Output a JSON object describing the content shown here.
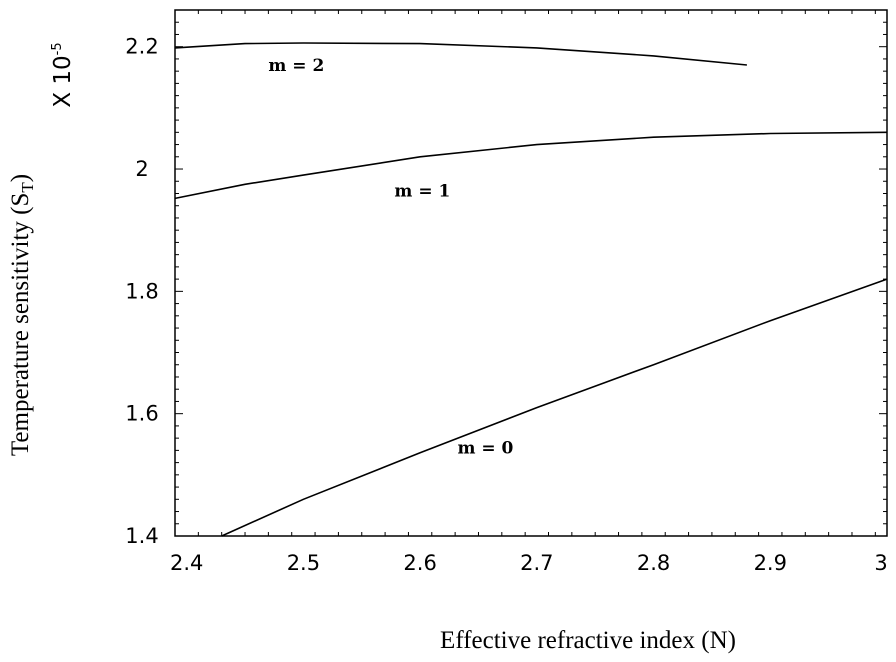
{
  "chart_data": {
    "type": "line",
    "xlabel": "Effective refractive index (N)",
    "ylabel": "Temperature sensitivity (S",
    "ylabel_sub": "T",
    "ylabel_close": ")",
    "ylabel_scale": "X 10",
    "ylabel_exp": "-5",
    "xlim": [
      2.39,
      3.0
    ],
    "ylim": [
      1.4,
      2.26
    ],
    "xticks": [
      "2.4",
      "2.5",
      "2.6",
      "2.7",
      "2.8",
      "2.9",
      "3"
    ],
    "yticks": [
      "1.4",
      "1.6",
      "1.8",
      "2",
      "2.2"
    ],
    "grid": false,
    "series": [
      {
        "name": "m = 0",
        "x": [
          2.43,
          2.5,
          2.6,
          2.7,
          2.8,
          2.9,
          3.0
        ],
        "y": [
          1.4,
          1.46,
          1.536,
          1.61,
          1.68,
          1.752,
          1.82
        ]
      },
      {
        "name": "m = 1",
        "x": [
          2.39,
          2.45,
          2.5,
          2.6,
          2.7,
          2.8,
          2.9,
          3.0
        ],
        "y": [
          1.952,
          1.975,
          1.99,
          2.02,
          2.04,
          2.052,
          2.058,
          2.06
        ]
      },
      {
        "name": "m = 2",
        "x": [
          2.39,
          2.45,
          2.5,
          2.6,
          2.7,
          2.8,
          2.88
        ],
        "y": [
          2.198,
          2.205,
          2.206,
          2.205,
          2.198,
          2.185,
          2.17
        ]
      }
    ]
  }
}
